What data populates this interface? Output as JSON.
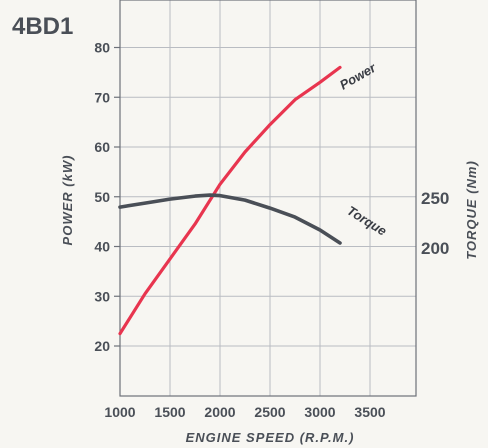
{
  "chart_data": {
    "type": "line",
    "title": "4BD1",
    "xlabel": "ENGINE SPEED (R.P.M.)",
    "ylabel": "POWER (kW)",
    "y2label": "TORQUE (Nm)",
    "xlim": [
      0,
      3500
    ],
    "ylim": [
      10,
      90
    ],
    "y2lim": [
      125,
      325
    ],
    "x_ticks": [
      "1000",
      "1500",
      "2000",
      "2500",
      "3000",
      "3500"
    ],
    "y_ticks": [
      "20",
      "30",
      "40",
      "50",
      "60",
      "70",
      "80"
    ],
    "y2_ticks": [
      "200",
      "250"
    ],
    "grid": true,
    "series": [
      {
        "name": "Power",
        "axis": "left",
        "color": "#e8354f",
        "x": [
          1000,
          1250,
          1500,
          1750,
          2000,
          2250,
          2500,
          2750,
          3000,
          3200
        ],
        "values": [
          22.5,
          30.5,
          37.5,
          44.5,
          52.5,
          59,
          64.5,
          69.5,
          73,
          76
        ]
      },
      {
        "name": "Torque",
        "axis": "right",
        "color": "#4a4f57",
        "x": [
          1000,
          1250,
          1500,
          1750,
          1900,
          2000,
          2250,
          2500,
          2750,
          3000,
          3200
        ],
        "values": [
          241,
          245,
          249,
          252,
          253,
          252.5,
          248,
          240,
          231,
          218,
          205
        ]
      }
    ]
  }
}
